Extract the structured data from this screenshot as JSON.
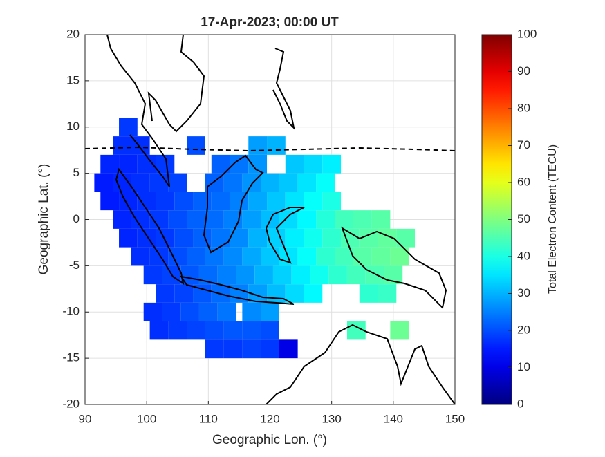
{
  "chart_data": {
    "type": "heatmap",
    "title": "17-Apr-2023; 00:00 UT",
    "xlabel": "Geographic Lon. (°)",
    "ylabel": "Geographic Lat. (°)",
    "colorbar_label": "Total Electron Content (TECU)",
    "colormap": "jet",
    "grid": true,
    "xlim": [
      90,
      150
    ],
    "xticks": [
      90,
      100,
      110,
      120,
      130,
      140,
      150
    ],
    "ylim": [
      -20,
      20
    ],
    "yticks": [
      -20,
      -15,
      -10,
      -5,
      0,
      5,
      10,
      15,
      20
    ],
    "clim": [
      0,
      100
    ],
    "cticks": [
      0,
      10,
      20,
      30,
      40,
      50,
      60,
      70,
      80,
      90,
      100
    ],
    "x": [
      97,
      96,
      99,
      108,
      118,
      121,
      94,
      97,
      100,
      103,
      112,
      115,
      118,
      124,
      127,
      130,
      93,
      96,
      99,
      102,
      105,
      111,
      114,
      117,
      120,
      123,
      126,
      129,
      94,
      97,
      100,
      103,
      106,
      109,
      112,
      115,
      118,
      121,
      124,
      127,
      130,
      96,
      99,
      102,
      105,
      108,
      111,
      114,
      117,
      120,
      123,
      126,
      129,
      132,
      135,
      138,
      97,
      100,
      103,
      106,
      109,
      112,
      115,
      118,
      121,
      124,
      127,
      130,
      133,
      136,
      139,
      142,
      99,
      102,
      105,
      108,
      111,
      114,
      117,
      120,
      123,
      126,
      129,
      132,
      135,
      138,
      141,
      101,
      104,
      107,
      110,
      113,
      116,
      119,
      122,
      125,
      128,
      131,
      134,
      137,
      140,
      103,
      106,
      109,
      112,
      115,
      118,
      121,
      124,
      127,
      136,
      139,
      101,
      104,
      107,
      110,
      113,
      117,
      120,
      102,
      105,
      108,
      111,
      114,
      117,
      120,
      134,
      141,
      111,
      114,
      117,
      120,
      123
    ],
    "y": [
      10,
      8,
      8,
      8,
      8,
      8,
      6,
      6,
      6,
      6,
      6,
      6,
      6,
      6,
      6,
      6,
      4,
      4,
      4,
      4,
      4,
      4,
      4,
      4,
      4,
      4,
      4,
      4,
      2,
      2,
      2,
      2,
      2,
      2,
      2,
      2,
      2,
      2,
      2,
      2,
      2,
      0,
      0,
      0,
      0,
      0,
      0,
      0,
      0,
      0,
      0,
      0,
      0,
      0,
      0,
      0,
      -2,
      -2,
      -2,
      -2,
      -2,
      -2,
      -2,
      -2,
      -2,
      -2,
      -2,
      -2,
      -2,
      -2,
      -2,
      -2,
      -4,
      -4,
      -4,
      -4,
      -4,
      -4,
      -4,
      -4,
      -4,
      -4,
      -4,
      -4,
      -4,
      -4,
      -4,
      -6,
      -6,
      -6,
      -6,
      -6,
      -6,
      -6,
      -6,
      -6,
      -6,
      -6,
      -6,
      -6,
      -6,
      -8,
      -8,
      -8,
      -8,
      -8,
      -8,
      -8,
      -8,
      -8,
      -8,
      -8,
      -10,
      -10,
      -10,
      -10,
      -10,
      -10,
      -10,
      -12,
      -12,
      -12,
      -12,
      -12,
      -12,
      -12,
      -12,
      -12,
      -14,
      -14,
      -14,
      -14,
      -14
    ],
    "values": [
      18,
      17,
      17,
      20,
      28,
      30,
      16,
      16,
      17,
      18,
      22,
      24,
      27,
      32,
      34,
      36,
      15,
      16,
      17,
      18,
      19,
      22,
      24,
      27,
      30,
      32,
      35,
      38,
      15,
      16,
      17,
      18,
      20,
      22,
      23,
      25,
      29,
      32,
      35,
      38,
      40,
      16,
      17,
      18,
      20,
      22,
      23,
      25,
      28,
      31,
      34,
      37,
      41,
      44,
      45,
      46,
      16,
      17,
      18,
      20,
      22,
      24,
      26,
      30,
      33,
      36,
      39,
      42,
      45,
      46,
      47,
      46,
      17,
      18,
      20,
      22,
      24,
      26,
      29,
      32,
      35,
      38,
      42,
      44,
      46,
      47,
      48,
      18,
      19,
      21,
      23,
      25,
      27,
      30,
      33,
      36,
      39,
      42,
      44,
      45,
      46,
      18,
      19,
      21,
      23,
      25,
      28,
      31,
      34,
      37,
      42,
      43,
      17,
      18,
      20,
      22,
      24,
      26,
      28,
      17,
      18,
      19,
      20,
      21,
      21,
      20,
      44,
      48,
      18,
      18,
      19,
      18,
      10
    ]
  }
}
